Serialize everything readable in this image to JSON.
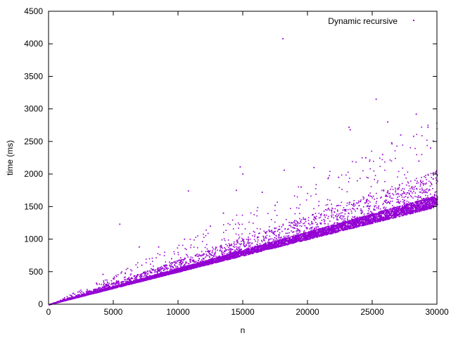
{
  "chart_data": {
    "type": "scatter",
    "title": "",
    "xlabel": "n",
    "ylabel": "time (ms)",
    "xlim": [
      0,
      30000
    ],
    "ylim": [
      0,
      4500
    ],
    "xticks": [
      0,
      5000,
      10000,
      15000,
      20000,
      25000,
      30000
    ],
    "yticks": [
      0,
      500,
      1000,
      1500,
      2000,
      2500,
      3000,
      3500,
      4000,
      4500
    ],
    "grid": false,
    "legend_position": "top-right",
    "series": [
      {
        "name": "Dynamic recursive",
        "color": "#9400d3",
        "marker": "dot",
        "trend": {
          "baseline_slope_ms_per_n": 0.05,
          "x_range": [
            0,
            30000
          ]
        },
        "points": [
          [
            1000,
            55
          ],
          [
            2000,
            105
          ],
          [
            3000,
            155
          ],
          [
            4000,
            205
          ],
          [
            4200,
            460
          ],
          [
            5000,
            255
          ],
          [
            5500,
            1230
          ],
          [
            5600,
            480
          ],
          [
            6000,
            310
          ],
          [
            7000,
            355
          ],
          [
            7000,
            880
          ],
          [
            7200,
            600
          ],
          [
            8000,
            405
          ],
          [
            8500,
            880
          ],
          [
            9000,
            455
          ],
          [
            9500,
            700
          ],
          [
            10000,
            505
          ],
          [
            10500,
            1000
          ],
          [
            10800,
            1740
          ],
          [
            11000,
            560
          ],
          [
            12000,
            605
          ],
          [
            12500,
            1200
          ],
          [
            13000,
            660
          ],
          [
            13500,
            1400
          ],
          [
            14000,
            710
          ],
          [
            14500,
            1750
          ],
          [
            14800,
            2110
          ],
          [
            15000,
            760
          ],
          [
            15000,
            2000
          ],
          [
            16000,
            810
          ],
          [
            16500,
            1720
          ],
          [
            17000,
            860
          ],
          [
            17500,
            1520
          ],
          [
            18000,
            910
          ],
          [
            18100,
            4080
          ],
          [
            18200,
            2060
          ],
          [
            19000,
            960
          ],
          [
            19500,
            1800
          ],
          [
            20000,
            1010
          ],
          [
            20500,
            2100
          ],
          [
            21000,
            1060
          ],
          [
            22000,
            1110
          ],
          [
            22400,
            1950
          ],
          [
            23000,
            1160
          ],
          [
            23200,
            2720
          ],
          [
            23300,
            2680
          ],
          [
            24000,
            1210
          ],
          [
            24500,
            2250
          ],
          [
            25000,
            1260
          ],
          [
            25300,
            3150
          ],
          [
            25800,
            2300
          ],
          [
            26000,
            1310
          ],
          [
            26200,
            2800
          ],
          [
            26500,
            2480
          ],
          [
            27000,
            1360
          ],
          [
            27200,
            2600
          ],
          [
            28000,
            1410
          ],
          [
            28200,
            2580
          ],
          [
            28400,
            2920
          ],
          [
            28600,
            2200
          ],
          [
            29000,
            1460
          ],
          [
            29300,
            2720
          ],
          [
            29500,
            2400
          ],
          [
            29900,
            1510
          ]
        ]
      }
    ]
  }
}
